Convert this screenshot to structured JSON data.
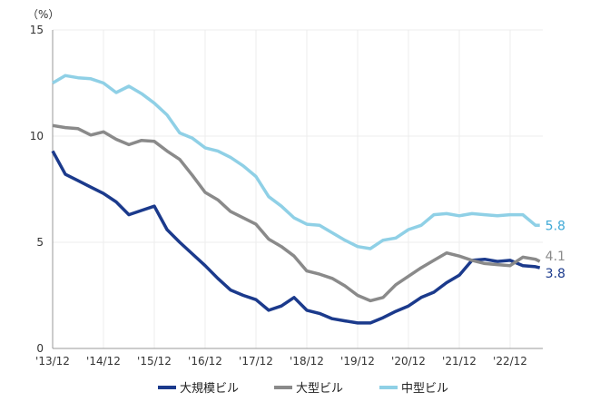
{
  "chart_data": {
    "type": "line",
    "title": "",
    "unit_label": "（%）",
    "xlabel": "",
    "ylabel": "",
    "ylim": [
      0,
      15
    ],
    "yticks": [
      0,
      5,
      10,
      15
    ],
    "xticks": [
      "'13/12",
      "'14/12",
      "'15/12",
      "'16/12",
      "'17/12",
      "'18/12",
      "'19/12",
      "'20/12",
      "'21/12",
      "'22/12"
    ],
    "grid": true,
    "legend_position": "bottom",
    "x": [
      "2013/12",
      "2014/03",
      "2014/06",
      "2014/09",
      "2014/12",
      "2015/03",
      "2015/06",
      "2015/09",
      "2015/12",
      "2016/03",
      "2016/06",
      "2016/09",
      "2016/12",
      "2017/03",
      "2017/06",
      "2017/09",
      "2017/12",
      "2018/03",
      "2018/06",
      "2018/09",
      "2018/12",
      "2019/03",
      "2019/06",
      "2019/09",
      "2019/12",
      "2020/03",
      "2020/06",
      "2020/09",
      "2020/12",
      "2021/03",
      "2021/06",
      "2021/09",
      "2021/12",
      "2022/03",
      "2022/06",
      "2022/09",
      "2022/12",
      "2023/03",
      "2023/06",
      "2023/07"
    ],
    "series": [
      {
        "name": "大規模ビル",
        "color": "#1b3a8c",
        "end_label": "3.8",
        "end_color": "#1b3a8c",
        "values": [
          9.3,
          8.2,
          7.9,
          7.6,
          7.3,
          6.9,
          6.3,
          6.5,
          6.7,
          5.6,
          5.0,
          4.45,
          3.9,
          3.3,
          2.75,
          2.5,
          2.3,
          1.8,
          2.0,
          2.4,
          1.8,
          1.65,
          1.4,
          1.3,
          1.2,
          1.2,
          1.45,
          1.75,
          2.0,
          2.4,
          2.65,
          3.1,
          3.45,
          4.15,
          4.2,
          4.1,
          4.15,
          3.9,
          3.85,
          3.8
        ]
      },
      {
        "name": "大型ビル",
        "color": "#8a8a8a",
        "end_label": "4.1",
        "end_color": "#8a8a8a",
        "values": [
          10.5,
          10.4,
          10.35,
          10.05,
          10.2,
          9.85,
          9.6,
          9.8,
          9.75,
          9.3,
          8.9,
          8.15,
          7.35,
          7.0,
          6.45,
          6.15,
          5.85,
          5.15,
          4.8,
          4.35,
          3.65,
          3.5,
          3.3,
          2.95,
          2.5,
          2.25,
          2.4,
          3.0,
          3.4,
          3.8,
          4.15,
          4.5,
          4.35,
          4.15,
          4.0,
          3.95,
          3.9,
          4.3,
          4.2,
          4.1
        ]
      },
      {
        "name": "中型ビル",
        "color": "#8fd0e6",
        "end_label": "5.8",
        "end_color": "#3fa9d6",
        "values": [
          12.5,
          12.85,
          12.75,
          12.7,
          12.5,
          12.05,
          12.35,
          12.0,
          11.55,
          11.0,
          10.15,
          9.9,
          9.45,
          9.3,
          9.0,
          8.6,
          8.1,
          7.15,
          6.7,
          6.15,
          5.85,
          5.8,
          5.45,
          5.1,
          4.8,
          4.7,
          5.1,
          5.2,
          5.6,
          5.8,
          6.3,
          6.35,
          6.25,
          6.35,
          6.3,
          6.25,
          6.3,
          6.3,
          5.8,
          5.8
        ]
      }
    ]
  }
}
